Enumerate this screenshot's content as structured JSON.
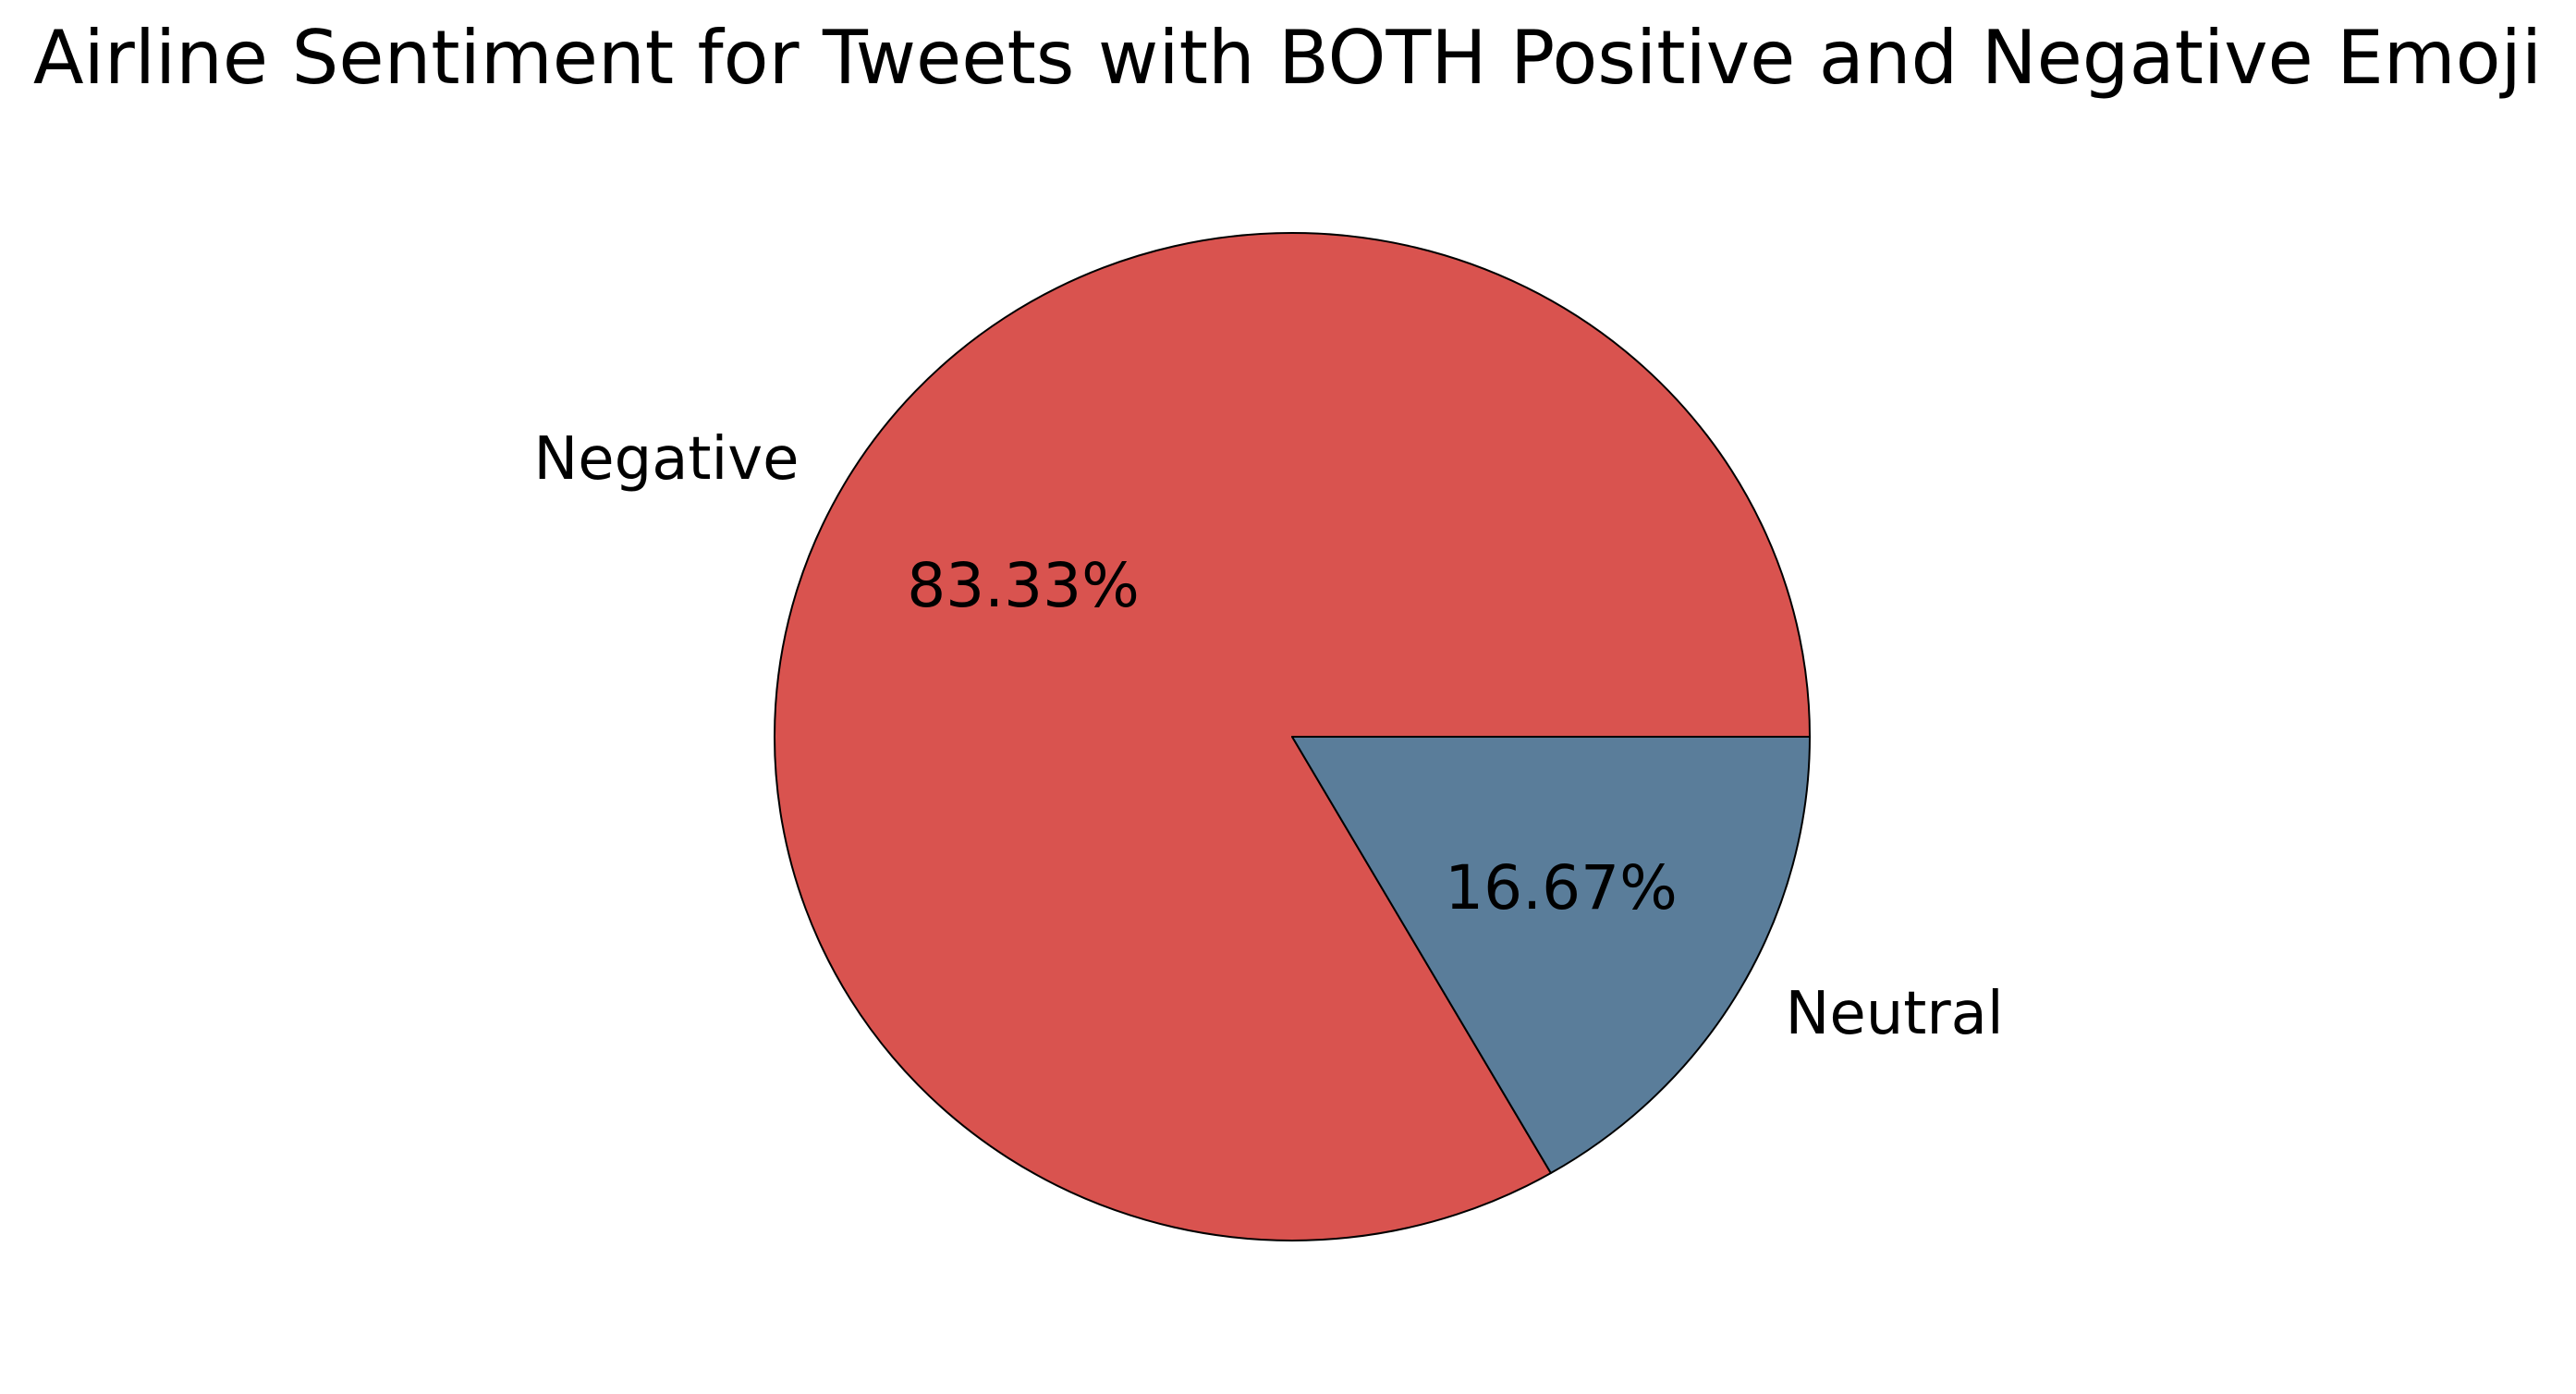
{
  "chart_data": {
    "type": "pie",
    "title": "Airline Sentiment for Tweets with BOTH Positive and Negative Emoji",
    "slices": [
      {
        "label": "Negative",
        "value": 83.33,
        "pct_label": "83.33%",
        "color": "#d9534f"
      },
      {
        "label": "Neutral",
        "value": 16.67,
        "pct_label": "16.67%",
        "color": "#5a7d9a"
      }
    ],
    "start_angle_deg": 0,
    "direction": "counterclockwise",
    "edge_color": "#000000",
    "legend": false
  }
}
